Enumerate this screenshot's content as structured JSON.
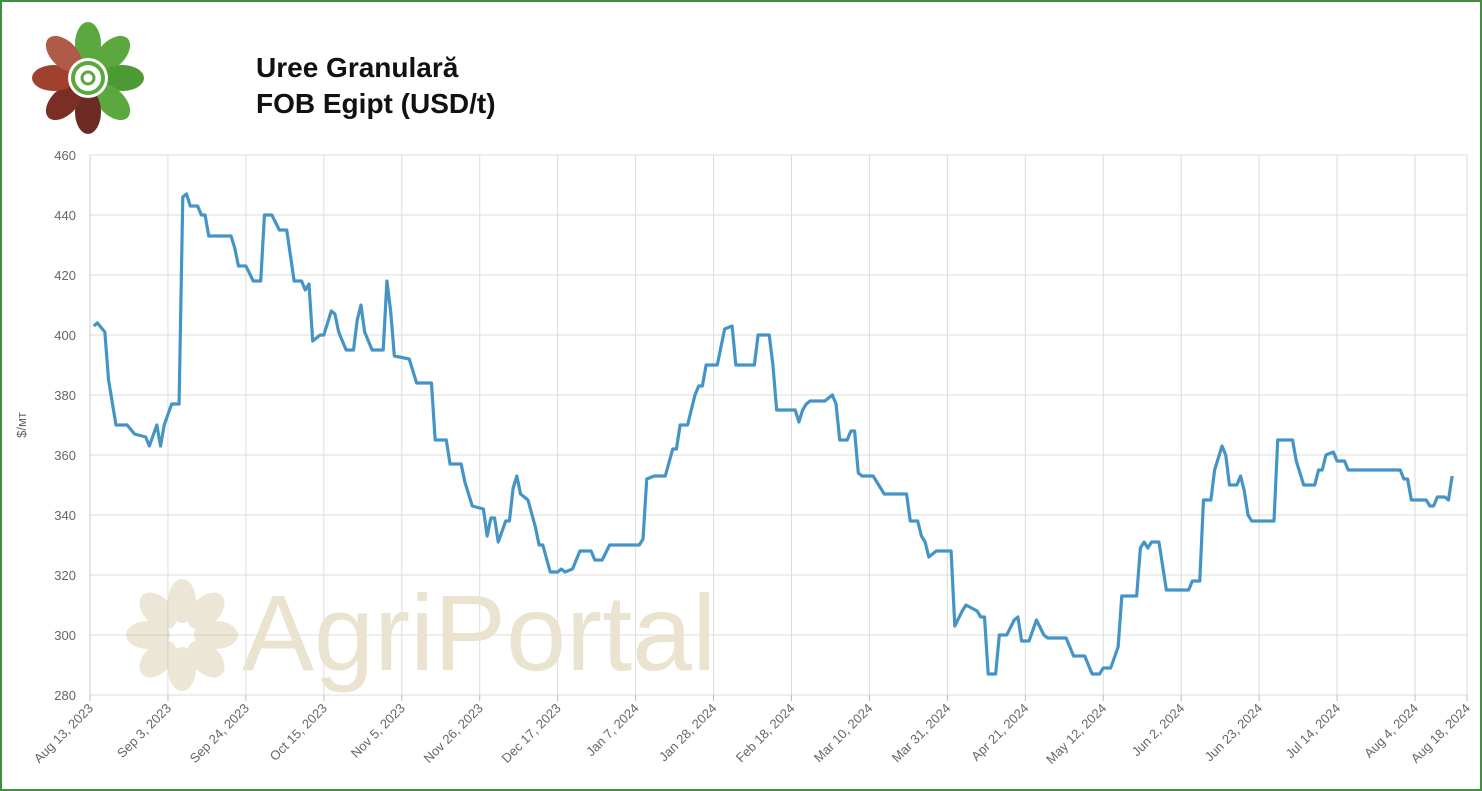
{
  "chart_data": {
    "type": "line",
    "title": [
      "Uree Granulară",
      "FOB Egipt (USD/t)"
    ],
    "y_label": "$/мт",
    "watermark": "AgriPortal",
    "grid": true,
    "series": [
      {
        "name": "FOB Egipt",
        "color": "#4495c6",
        "x": [
          "2023-08-14",
          "2023-08-15",
          "2023-08-17",
          "2023-08-18",
          "2023-08-20",
          "2023-08-23",
          "2023-08-25",
          "2023-08-28",
          "2023-08-29",
          "2023-08-31",
          "2023-09-01",
          "2023-09-02",
          "2023-09-04",
          "2023-09-06",
          "2023-09-07",
          "2023-09-08",
          "2023-09-09",
          "2023-09-11",
          "2023-09-12",
          "2023-09-13",
          "2023-09-14",
          "2023-09-20",
          "2023-09-21",
          "2023-09-22",
          "2023-09-24",
          "2023-09-26",
          "2023-09-28",
          "2023-09-29",
          "2023-10-01",
          "2023-10-03",
          "2023-10-05",
          "2023-10-07",
          "2023-10-09",
          "2023-10-10",
          "2023-10-11",
          "2023-10-12",
          "2023-10-14",
          "2023-10-15",
          "2023-10-17",
          "2023-10-18",
          "2023-10-19",
          "2023-10-21",
          "2023-10-23",
          "2023-10-24",
          "2023-10-25",
          "2023-10-26",
          "2023-10-28",
          "2023-10-31",
          "2023-11-01",
          "2023-11-02",
          "2023-11-03",
          "2023-11-07",
          "2023-11-09",
          "2023-11-13",
          "2023-11-14",
          "2023-11-17",
          "2023-11-18",
          "2023-11-21",
          "2023-11-22",
          "2023-11-24",
          "2023-11-27",
          "2023-11-28",
          "2023-11-29",
          "2023-11-30",
          "2023-12-01",
          "2023-12-03",
          "2023-12-04",
          "2023-12-05",
          "2023-12-06",
          "2023-12-07",
          "2023-12-09",
          "2023-12-11",
          "2023-12-12",
          "2023-12-13",
          "2023-12-15",
          "2023-12-17",
          "2023-12-18",
          "2023-12-19",
          "2023-12-21",
          "2023-12-23",
          "2023-12-26",
          "2023-12-27",
          "2023-12-29",
          "2023-12-31",
          "2024-01-08",
          "2024-01-09",
          "2024-01-10",
          "2024-01-12",
          "2024-01-15",
          "2024-01-17",
          "2024-01-18",
          "2024-01-19",
          "2024-01-21",
          "2024-01-23",
          "2024-01-24",
          "2024-01-25",
          "2024-01-26",
          "2024-01-29",
          "2024-01-31",
          "2024-02-02",
          "2024-02-03",
          "2024-02-08",
          "2024-02-09",
          "2024-02-12",
          "2024-02-13",
          "2024-02-14",
          "2024-02-17",
          "2024-02-19",
          "2024-02-20",
          "2024-02-21",
          "2024-02-22",
          "2024-02-23",
          "2024-02-27",
          "2024-02-29",
          "2024-03-01",
          "2024-03-02",
          "2024-03-04",
          "2024-03-05",
          "2024-03-06",
          "2024-03-07",
          "2024-03-08",
          "2024-03-11",
          "2024-03-13",
          "2024-03-14",
          "2024-03-20",
          "2024-03-21",
          "2024-03-23",
          "2024-03-24",
          "2024-03-25",
          "2024-03-26",
          "2024-03-28",
          "2024-04-01",
          "2024-04-02",
          "2024-04-04",
          "2024-04-05",
          "2024-04-08",
          "2024-04-09",
          "2024-04-10",
          "2024-04-11",
          "2024-04-13",
          "2024-04-14",
          "2024-04-16",
          "2024-04-18",
          "2024-04-19",
          "2024-04-20",
          "2024-04-22",
          "2024-04-24",
          "2024-04-26",
          "2024-04-27",
          "2024-05-02",
          "2024-05-04",
          "2024-05-07",
          "2024-05-09",
          "2024-05-11",
          "2024-05-12",
          "2024-05-14",
          "2024-05-16",
          "2024-05-17",
          "2024-05-21",
          "2024-05-22",
          "2024-05-23",
          "2024-05-24",
          "2024-05-25",
          "2024-05-27",
          "2024-05-29",
          "2024-06-04",
          "2024-06-05",
          "2024-06-07",
          "2024-06-08",
          "2024-06-10",
          "2024-06-11",
          "2024-06-13",
          "2024-06-14",
          "2024-06-15",
          "2024-06-17",
          "2024-06-18",
          "2024-06-19",
          "2024-06-20",
          "2024-06-21",
          "2024-06-27",
          "2024-06-28",
          "2024-07-02",
          "2024-07-03",
          "2024-07-05",
          "2024-07-08",
          "2024-07-09",
          "2024-07-10",
          "2024-07-11",
          "2024-07-13",
          "2024-07-14",
          "2024-07-16",
          "2024-07-17",
          "2024-07-31",
          "2024-08-01",
          "2024-08-02",
          "2024-08-03",
          "2024-08-07",
          "2024-08-08",
          "2024-08-09",
          "2024-08-10",
          "2024-08-12",
          "2024-08-13",
          "2024-08-14"
        ],
        "values": [
          403,
          404,
          401,
          385,
          370,
          370,
          367,
          366,
          363,
          370,
          363,
          370,
          377,
          377,
          446,
          447,
          443,
          443,
          440,
          440,
          433,
          433,
          429,
          423,
          423,
          418,
          418,
          440,
          440,
          435,
          435,
          418,
          418,
          415,
          417,
          398,
          400,
          400,
          408,
          407,
          401,
          395,
          395,
          405,
          410,
          401,
          395,
          395,
          418,
          408,
          393,
          392,
          384,
          384,
          365,
          365,
          357,
          357,
          351,
          343,
          342,
          333,
          339,
          339,
          331,
          338,
          338,
          349,
          353,
          347,
          345,
          336,
          330,
          330,
          321,
          321,
          322,
          321,
          322,
          328,
          328,
          325,
          325,
          330,
          330,
          332,
          352,
          353,
          353,
          362,
          362,
          370,
          370,
          380,
          383,
          383,
          390,
          390,
          402,
          403,
          390,
          390,
          400,
          400,
          390,
          375,
          375,
          375,
          371,
          375,
          377,
          378,
          378,
          380,
          377,
          365,
          365,
          368,
          368,
          354,
          353,
          353,
          349,
          347,
          347,
          338,
          338,
          333,
          331,
          326,
          328,
          328,
          303,
          308,
          310,
          308,
          306,
          306,
          287,
          287,
          300,
          300,
          305,
          306,
          298,
          298,
          305,
          300,
          299,
          299,
          293,
          293,
          287,
          287,
          289,
          289,
          296,
          313,
          313,
          329,
          331,
          329,
          331,
          331,
          315,
          315,
          318,
          318,
          345,
          345,
          355,
          363,
          360,
          350,
          350,
          353,
          348,
          340,
          338,
          338,
          365,
          365,
          358,
          350,
          350,
          355,
          355,
          360,
          361,
          358,
          358,
          355,
          355,
          352,
          352,
          345,
          345,
          343,
          343,
          346,
          346,
          345,
          353
        ]
      }
    ],
    "xlim": [
      "2023-08-13",
      "2024-08-18"
    ],
    "xticks": [
      {
        "value": "2023-08-13",
        "label": "Aug 13, 2023"
      },
      {
        "value": "2023-09-03",
        "label": "Sep 3, 2023"
      },
      {
        "value": "2023-09-24",
        "label": "Sep 24, 2023"
      },
      {
        "value": "2023-10-15",
        "label": "Oct 15, 2023"
      },
      {
        "value": "2023-11-05",
        "label": "Nov 5, 2023"
      },
      {
        "value": "2023-11-26",
        "label": "Nov 26, 2023"
      },
      {
        "value": "2023-12-17",
        "label": "Dec 17, 2023"
      },
      {
        "value": "2024-01-07",
        "label": "Jan 7, 2024"
      },
      {
        "value": "2024-01-28",
        "label": "Jan 28, 2024"
      },
      {
        "value": "2024-02-18",
        "label": "Feb 18, 2024"
      },
      {
        "value": "2024-03-10",
        "label": "Mar 10, 2024"
      },
      {
        "value": "2024-03-31",
        "label": "Mar 31, 2024"
      },
      {
        "value": "2024-04-21",
        "label": "Apr 21, 2024"
      },
      {
        "value": "2024-05-12",
        "label": "May 12, 2024"
      },
      {
        "value": "2024-06-02",
        "label": "Jun 2, 2024"
      },
      {
        "value": "2024-06-23",
        "label": "Jun 23, 2024"
      },
      {
        "value": "2024-07-14",
        "label": "Jul 14, 2024"
      },
      {
        "value": "2024-08-04",
        "label": "Aug 4, 2024"
      },
      {
        "value": "2024-08-18",
        "label": "Aug 18, 2024"
      }
    ],
    "ylim": [
      280,
      460
    ],
    "yticks": [
      280,
      300,
      320,
      340,
      360,
      380,
      400,
      420,
      440,
      460
    ]
  }
}
